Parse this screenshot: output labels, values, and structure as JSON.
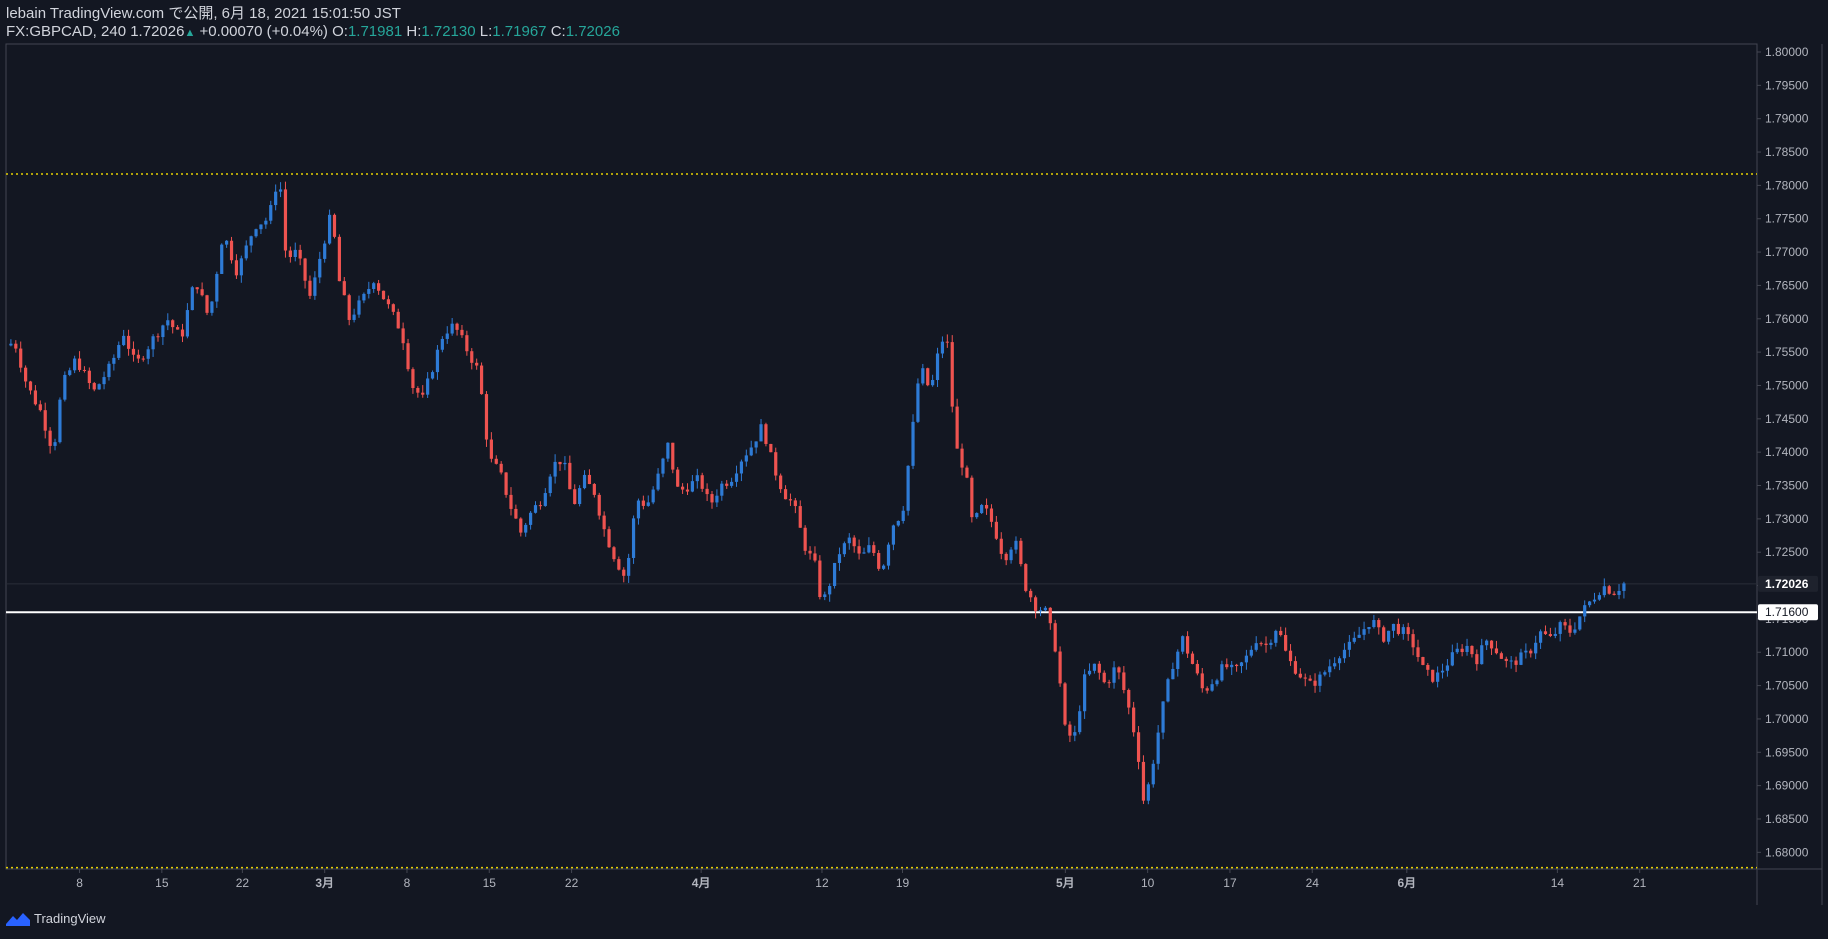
{
  "header": {
    "line1": "lebain TradingView.com で公開, 6月 18, 2021 15:01:50 JST",
    "symbol": "FX:GBPCAD, 240 1.72026",
    "change": "+0.00070 (+0.04%)",
    "o_label": "O:",
    "o_value": "1.71981",
    "h_label": "H:",
    "h_value": "1.72130",
    "l_label": "L:",
    "l_value": "1.71967",
    "c_label": "C:",
    "c_value": "1.72026"
  },
  "footer": {
    "brand": "TradingView"
  },
  "colors": {
    "bg": "#131722",
    "up": "#2e7bd6",
    "down": "#ef5350",
    "grid_text": "#b2b5be",
    "hline": "#ffffff",
    "dotted": "#e6d200"
  },
  "chart_data": {
    "type": "candlestick",
    "symbol": "FX:GBPCAD",
    "interval": "240",
    "ylim": [
      1.6775,
      1.8012
    ],
    "y_ticks": [
      "1.80000",
      "1.79500",
      "1.79000",
      "1.78500",
      "1.78000",
      "1.77500",
      "1.77000",
      "1.76500",
      "1.76000",
      "1.75500",
      "1.75000",
      "1.74500",
      "1.74000",
      "1.73500",
      "1.73000",
      "1.72500",
      "1.72000",
      "1.71500",
      "1.71000",
      "1.70500",
      "1.70000",
      "1.69500",
      "1.69000",
      "1.68500",
      "1.68000"
    ],
    "x_ticks": [
      {
        "label": "8",
        "pos": 0.042
      },
      {
        "label": "15",
        "pos": 0.089
      },
      {
        "label": "22",
        "pos": 0.135
      },
      {
        "label": "3月",
        "pos": 0.182,
        "bold": true
      },
      {
        "label": "8",
        "pos": 0.229
      },
      {
        "label": "15",
        "pos": 0.276
      },
      {
        "label": "22",
        "pos": 0.323
      },
      {
        "label": "4月",
        "pos": 0.397,
        "bold": true
      },
      {
        "label": "12",
        "pos": 0.466
      },
      {
        "label": "19",
        "pos": 0.512
      },
      {
        "label": "5月",
        "pos": 0.605,
        "bold": true
      },
      {
        "label": "10",
        "pos": 0.652
      },
      {
        "label": "17",
        "pos": 0.699
      },
      {
        "label": "24",
        "pos": 0.746
      },
      {
        "label": "6月",
        "pos": 0.8,
        "bold": true
      },
      {
        "label": "14",
        "pos": 0.886
      },
      {
        "label": "21",
        "pos": 0.933
      }
    ],
    "horizontal_lines": [
      {
        "price": 1.716,
        "label": "1.71600",
        "style": "solid"
      },
      {
        "price": 1.7817,
        "style": "dotted"
      },
      {
        "price": 1.6777,
        "style": "dotted"
      }
    ],
    "last_price": {
      "value": 1.72026,
      "label": "1.72026"
    },
    "path": [
      [
        0,
        1.756
      ],
      [
        0.005,
        1.7565
      ],
      [
        0.012,
        1.75
      ],
      [
        0.02,
        1.746
      ],
      [
        0.027,
        1.74
      ],
      [
        0.032,
        1.75
      ],
      [
        0.04,
        1.754
      ],
      [
        0.05,
        1.749
      ],
      [
        0.06,
        1.753
      ],
      [
        0.067,
        1.758
      ],
      [
        0.074,
        1.753
      ],
      [
        0.084,
        1.757
      ],
      [
        0.092,
        1.76
      ],
      [
        0.1,
        1.757
      ],
      [
        0.108,
        1.766
      ],
      [
        0.116,
        1.76
      ],
      [
        0.124,
        1.773
      ],
      [
        0.132,
        1.767
      ],
      [
        0.142,
        1.774
      ],
      [
        0.15,
        1.775
      ],
      [
        0.156,
        1.782
      ],
      [
        0.16,
        1.769
      ],
      [
        0.166,
        1.77
      ],
      [
        0.174,
        1.763
      ],
      [
        0.18,
        1.77
      ],
      [
        0.186,
        1.776
      ],
      [
        0.19,
        1.766
      ],
      [
        0.196,
        1.76
      ],
      [
        0.204,
        1.763
      ],
      [
        0.21,
        1.766
      ],
      [
        0.22,
        1.761
      ],
      [
        0.226,
        1.758
      ],
      [
        0.232,
        1.75
      ],
      [
        0.238,
        1.748
      ],
      [
        0.244,
        1.753
      ],
      [
        0.25,
        1.758
      ],
      [
        0.256,
        1.759
      ],
      [
        0.262,
        1.756
      ],
      [
        0.27,
        1.752
      ],
      [
        0.276,
        1.739
      ],
      [
        0.282,
        1.737
      ],
      [
        0.288,
        1.732
      ],
      [
        0.294,
        1.728
      ],
      [
        0.3,
        1.731
      ],
      [
        0.306,
        1.733
      ],
      [
        0.312,
        1.738
      ],
      [
        0.318,
        1.739
      ],
      [
        0.324,
        1.732
      ],
      [
        0.33,
        1.736
      ],
      [
        0.336,
        1.734
      ],
      [
        0.342,
        1.728
      ],
      [
        0.348,
        1.724
      ],
      [
        0.354,
        1.721
      ],
      [
        0.36,
        1.733
      ],
      [
        0.366,
        1.732
      ],
      [
        0.372,
        1.736
      ],
      [
        0.378,
        1.741
      ],
      [
        0.384,
        1.734
      ],
      [
        0.39,
        1.735
      ],
      [
        0.396,
        1.736
      ],
      [
        0.402,
        1.732
      ],
      [
        0.408,
        1.735
      ],
      [
        0.414,
        1.736
      ],
      [
        0.42,
        1.739
      ],
      [
        0.426,
        1.741
      ],
      [
        0.432,
        1.744
      ],
      [
        0.438,
        1.738
      ],
      [
        0.444,
        1.734
      ],
      [
        0.45,
        1.732
      ],
      [
        0.456,
        1.726
      ],
      [
        0.462,
        1.723
      ],
      [
        0.466,
        1.717
      ],
      [
        0.47,
        1.72
      ],
      [
        0.476,
        1.725
      ],
      [
        0.482,
        1.727
      ],
      [
        0.488,
        1.724
      ],
      [
        0.494,
        1.726
      ],
      [
        0.5,
        1.722
      ],
      [
        0.506,
        1.729
      ],
      [
        0.512,
        1.731
      ],
      [
        0.518,
        1.744
      ],
      [
        0.522,
        1.753
      ],
      [
        0.528,
        1.749
      ],
      [
        0.534,
        1.757
      ],
      [
        0.538,
        1.756
      ],
      [
        0.542,
        1.741
      ],
      [
        0.548,
        1.737
      ],
      [
        0.552,
        1.729
      ],
      [
        0.558,
        1.732
      ],
      [
        0.564,
        1.729
      ],
      [
        0.57,
        1.724
      ],
      [
        0.576,
        1.727
      ],
      [
        0.582,
        1.72
      ],
      [
        0.588,
        1.717
      ],
      [
        0.594,
        1.716
      ],
      [
        0.6,
        1.71
      ],
      [
        0.605,
        1.698
      ],
      [
        0.61,
        1.697
      ],
      [
        0.616,
        1.706
      ],
      [
        0.622,
        1.708
      ],
      [
        0.628,
        1.705
      ],
      [
        0.634,
        1.708
      ],
      [
        0.64,
        1.703
      ],
      [
        0.646,
        1.696
      ],
      [
        0.65,
        1.687
      ],
      [
        0.654,
        1.692
      ],
      [
        0.66,
        1.701
      ],
      [
        0.666,
        1.708
      ],
      [
        0.672,
        1.712
      ],
      [
        0.678,
        1.708
      ],
      [
        0.684,
        1.704
      ],
      [
        0.69,
        1.706
      ],
      [
        0.696,
        1.708
      ],
      [
        0.702,
        1.707
      ],
      [
        0.708,
        1.709
      ],
      [
        0.714,
        1.712
      ],
      [
        0.72,
        1.711
      ],
      [
        0.726,
        1.714
      ],
      [
        0.732,
        1.709
      ],
      [
        0.738,
        1.707
      ],
      [
        0.744,
        1.705
      ],
      [
        0.75,
        1.706
      ],
      [
        0.756,
        1.708
      ],
      [
        0.762,
        1.71
      ],
      [
        0.768,
        1.711
      ],
      [
        0.774,
        1.713
      ],
      [
        0.78,
        1.715
      ],
      [
        0.786,
        1.712
      ],
      [
        0.792,
        1.714
      ],
      [
        0.798,
        1.713
      ],
      [
        0.804,
        1.711
      ],
      [
        0.81,
        1.707
      ],
      [
        0.816,
        1.706
      ],
      [
        0.822,
        1.708
      ],
      [
        0.828,
        1.71
      ],
      [
        0.834,
        1.711
      ],
      [
        0.84,
        1.709
      ],
      [
        0.846,
        1.712
      ],
      [
        0.852,
        1.71
      ],
      [
        0.858,
        1.708
      ],
      [
        0.864,
        1.709
      ],
      [
        0.87,
        1.71
      ],
      [
        0.876,
        1.713
      ],
      [
        0.882,
        1.712
      ],
      [
        0.888,
        1.714
      ],
      [
        0.894,
        1.713
      ],
      [
        0.9,
        1.716
      ],
      [
        0.906,
        1.718
      ],
      [
        0.912,
        1.72
      ],
      [
        0.918,
        1.719
      ],
      [
        0.924,
        1.7203
      ]
    ]
  }
}
